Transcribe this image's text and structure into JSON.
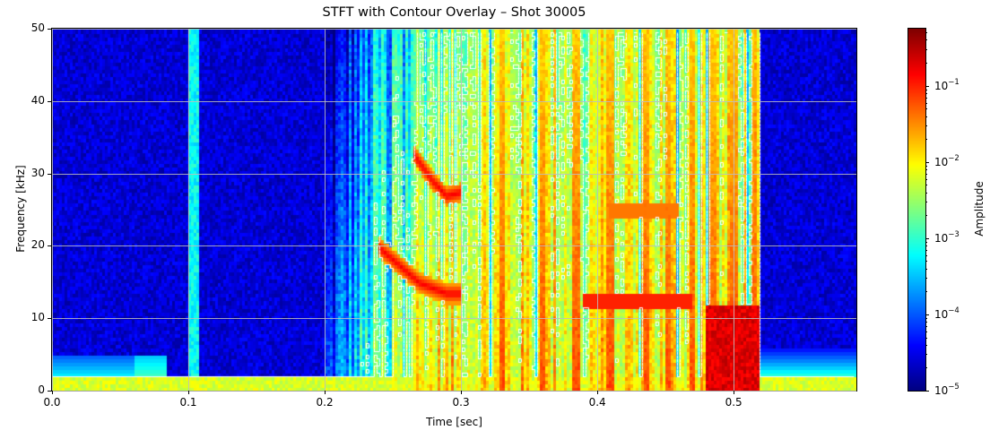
{
  "chart_data": {
    "type": "heatmap",
    "title": "STFT with Contour Overlay – Shot 30005",
    "xlabel": "Time [sec]",
    "ylabel": "Frequency [kHz]",
    "xlim": [
      0.0,
      0.59
    ],
    "ylim": [
      0,
      50
    ],
    "xticks": [
      0.0,
      0.1,
      0.2,
      0.3,
      0.4,
      0.5
    ],
    "xtick_labels": [
      "0.0",
      "0.1",
      "0.2",
      "0.3",
      "0.4",
      "0.5"
    ],
    "yticks": [
      0,
      10,
      20,
      30,
      40,
      50
    ],
    "ytick_labels": [
      "0",
      "10",
      "20",
      "30",
      "40",
      "50"
    ],
    "grid": true,
    "colormap": "jet",
    "colorbar": {
      "label": "Amplitude",
      "scale": "log",
      "range": [
        1e-05,
        0.56
      ],
      "ticks": [
        {
          "base": "10",
          "exp": "−1",
          "value": 0.1
        },
        {
          "base": "10",
          "exp": "−2",
          "value": 0.01
        },
        {
          "base": "10",
          "exp": "−3",
          "value": 0.001
        },
        {
          "base": "10",
          "exp": "−4",
          "value": 0.0001
        },
        {
          "base": "10",
          "exp": "−5",
          "value": 1e-05
        }
      ]
    },
    "contour_color": "#ffffff",
    "features": {
      "quiet_segments": [
        [
          0.0,
          0.1
        ],
        [
          0.105,
          0.2
        ],
        [
          0.52,
          0.59
        ]
      ],
      "active_segment": [
        0.2,
        0.52
      ],
      "spike_at": 0.1,
      "low_freq_band_kHz": [
        0,
        2
      ],
      "chirp_1": {
        "t": [
          0.24,
          0.27,
          0.29,
          0.3
        ],
        "f": [
          20,
          15,
          13.5,
          13.5
        ]
      },
      "chirp_2": {
        "t": [
          0.265,
          0.28,
          0.29,
          0.3
        ],
        "f": [
          33,
          29,
          27,
          27.5
        ]
      },
      "mode_band_12kHz": {
        "t": [
          0.39,
          0.47
        ],
        "f": 12.5
      },
      "mode_band_25kHz": {
        "t": [
          0.41,
          0.46
        ],
        "f": 25
      },
      "strong_vertical_bursts_sec": [
        0.33,
        0.36,
        0.385,
        0.41,
        0.437,
        0.452,
        0.47,
        0.485,
        0.5,
        0.515
      ]
    }
  }
}
